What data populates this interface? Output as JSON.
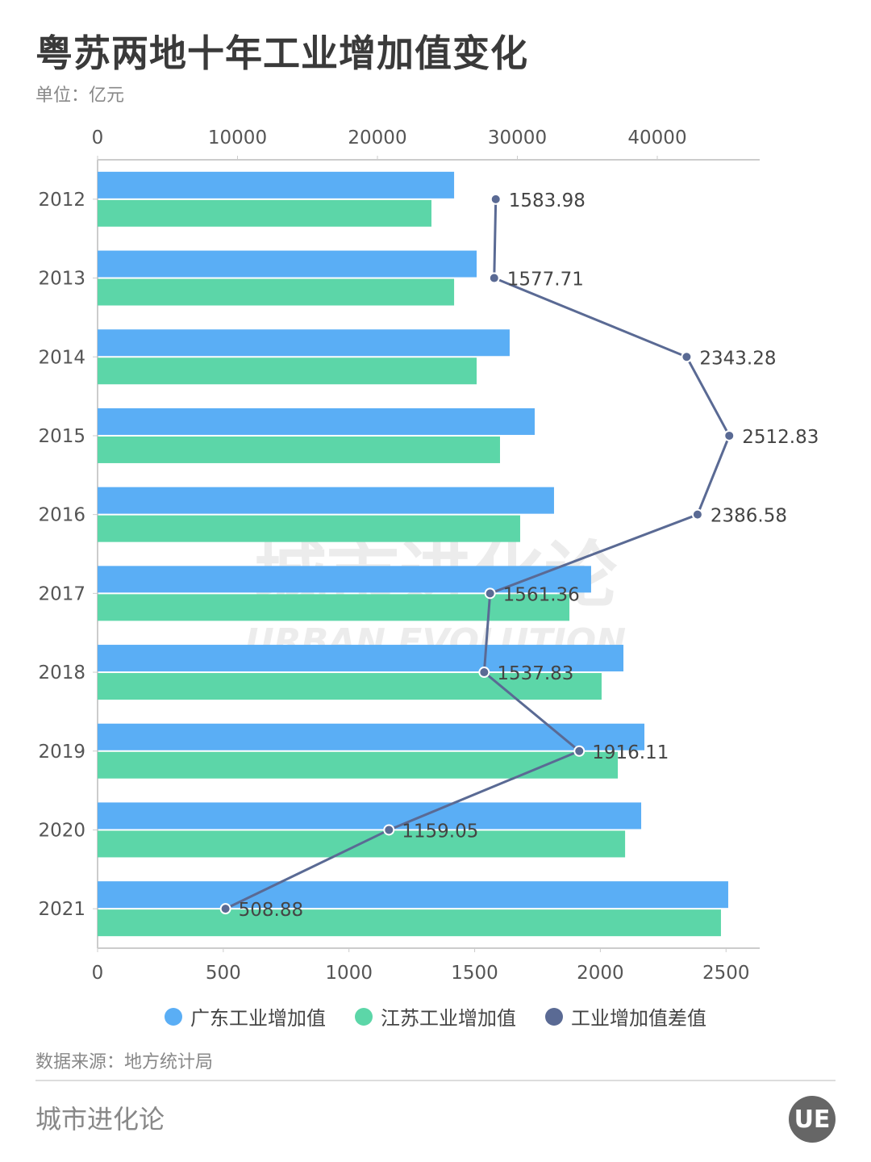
{
  "title": "粤苏两地十年工业增加值变化",
  "unit": "单位：亿元",
  "source": "数据来源：地方统计局",
  "brand": "城市进化论",
  "logo_text": "UE",
  "watermark": {
    "cn": "城市进化论",
    "en": "URBAN EVOLUTION"
  },
  "chart_data": {
    "type": "bar",
    "orientation": "horizontal",
    "categories": [
      "2012",
      "2013",
      "2014",
      "2015",
      "2016",
      "2017",
      "2018",
      "2019",
      "2020",
      "2021"
    ],
    "top_axis": {
      "range": [
        0,
        47300
      ],
      "ticks": [
        "0",
        "10000",
        "20000",
        "30000",
        "40000"
      ]
    },
    "bottom_axis": {
      "range": [
        0,
        2630
      ],
      "ticks": [
        "0",
        "500",
        "1000",
        "1500",
        "2000",
        "2500"
      ]
    },
    "series": [
      {
        "name": "广东工业增加值",
        "type": "bar",
        "axis": "top",
        "color": "#5aaef5",
        "values": [
          25480,
          27090,
          29450,
          31240,
          32620,
          35270,
          37580,
          39080,
          38850,
          45070
        ]
      },
      {
        "name": "江苏工业增加值",
        "type": "bar",
        "axis": "top",
        "color": "#5cd6a8",
        "values": [
          23860,
          25480,
          27090,
          28760,
          30200,
          33720,
          36020,
          37180,
          37700,
          44550
        ]
      },
      {
        "name": "工业增加值差值",
        "type": "line",
        "axis": "bottom",
        "color": "#5a6a94",
        "values": [
          1583.98,
          1577.71,
          2343.28,
          2512.83,
          2386.58,
          1561.36,
          1537.83,
          1916.11,
          1159.05,
          508.88
        ],
        "labels": [
          "1583.98",
          "1577.71",
          "2343.28",
          "2512.83",
          "2386.58",
          "1561.36",
          "1537.83",
          "1916.11",
          "1159.05",
          "508.88"
        ]
      }
    ],
    "legend": "bottom",
    "grid": false
  }
}
